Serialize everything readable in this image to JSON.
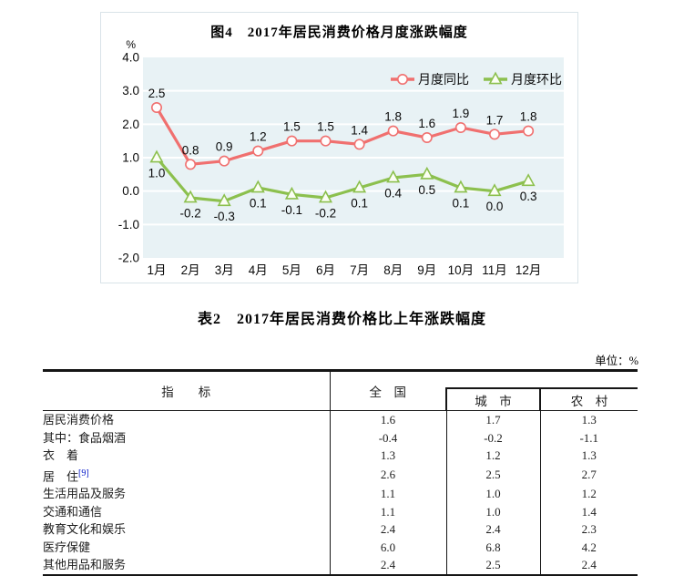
{
  "chart": {
    "panel_name": "figure-4",
    "legend_position": "top-right"
  },
  "chart_data": {
    "type": "line",
    "title": "图4　2017年居民消费价格月度涨跌幅度",
    "categories": [
      "1月",
      "2月",
      "3月",
      "4月",
      "5月",
      "6月",
      "7月",
      "8月",
      "9月",
      "10月",
      "11月",
      "12月"
    ],
    "series": [
      {
        "name": "月度同比",
        "marker": "circle",
        "color": "#f0706f",
        "values": [
          2.5,
          0.8,
          0.9,
          1.2,
          1.5,
          1.5,
          1.4,
          1.8,
          1.6,
          1.9,
          1.7,
          1.8
        ]
      },
      {
        "name": "月度环比",
        "marker": "triangle",
        "color": "#8cc04e",
        "values": [
          1.0,
          -0.2,
          -0.3,
          0.1,
          -0.1,
          -0.2,
          0.1,
          0.4,
          0.5,
          0.1,
          0.0,
          0.3
        ]
      }
    ],
    "xlabel": "",
    "ylabel": "%",
    "ylim": [
      -2.0,
      4.0
    ],
    "ytick_step": 1.0,
    "grid": true,
    "legend_position": "top-right",
    "plot_bg": "#e8f2f5",
    "grid_color": "#ffffff"
  },
  "table": {
    "title": "表2　2017年居民消费价格比上年涨跌幅度",
    "unit_note": "单位：%",
    "headers": {
      "indicator": "指　　标",
      "national": "全　国",
      "city": "城　市",
      "rural": "农　村"
    },
    "rows": [
      {
        "label": "居民消费价格",
        "national": "1.6",
        "city": "1.7",
        "rural": "1.3"
      },
      {
        "label": "其中：食品烟酒",
        "national": "-0.4",
        "city": "-0.2",
        "rural": "-1.1"
      },
      {
        "label": "衣　着",
        "national": "1.3",
        "city": "1.2",
        "rural": "1.3"
      },
      {
        "label": "居　住",
        "sup": "[9]",
        "national": "2.6",
        "city": "2.5",
        "rural": "2.7"
      },
      {
        "label": "生活用品及服务",
        "national": "1.1",
        "city": "1.0",
        "rural": "1.2"
      },
      {
        "label": "交通和通信",
        "national": "1.1",
        "city": "1.0",
        "rural": "1.4"
      },
      {
        "label": "教育文化和娱乐",
        "national": "2.4",
        "city": "2.4",
        "rural": "2.3"
      },
      {
        "label": "医疗保健",
        "national": "6.0",
        "city": "6.8",
        "rural": "4.2"
      },
      {
        "label": "其他用品和服务",
        "national": "2.4",
        "city": "2.5",
        "rural": "2.4"
      }
    ]
  }
}
